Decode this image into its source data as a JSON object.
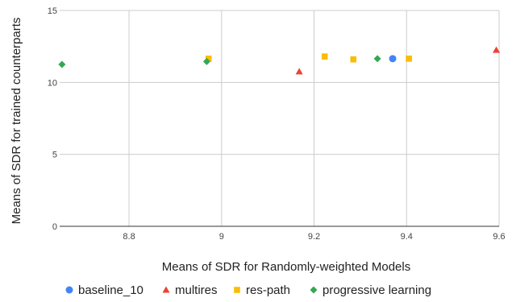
{
  "chart_data": {
    "type": "scatter",
    "title": "",
    "xlabel": "Means of SDR for Randomly-weighted Models",
    "ylabel": "Means of SDR for trained counterparts",
    "xlim": [
      8.65,
      9.6
    ],
    "ylim": [
      0,
      15
    ],
    "x_ticks": [
      "8.8",
      "9",
      "9.2",
      "9.4",
      "9.6"
    ],
    "x_tick_values": [
      8.8,
      9.0,
      9.2,
      9.4,
      9.6
    ],
    "y_ticks": [
      "0",
      "5",
      "10",
      "15"
    ],
    "y_tick_values": [
      0,
      5,
      10,
      15
    ],
    "grid": true,
    "legend_position": "bottom",
    "series": [
      {
        "name": "baseline_10",
        "marker": "circle",
        "color": "#4285F4",
        "points": [
          [
            9.37,
            11.65
          ]
        ]
      },
      {
        "name": "multires",
        "marker": "triangle",
        "color": "#EA4335",
        "points": [
          [
            9.168,
            10.75
          ],
          [
            9.594,
            12.25
          ]
        ]
      },
      {
        "name": "res-path",
        "marker": "square",
        "color": "#FBBC04",
        "points": [
          [
            8.972,
            11.65
          ],
          [
            9.223,
            11.8
          ],
          [
            9.285,
            11.6
          ],
          [
            9.405,
            11.65
          ]
        ]
      },
      {
        "name": "progressive learning",
        "marker": "diamond",
        "color": "#34A853",
        "points": [
          [
            8.655,
            11.25
          ],
          [
            8.968,
            11.45
          ],
          [
            9.337,
            11.65
          ]
        ]
      }
    ]
  }
}
